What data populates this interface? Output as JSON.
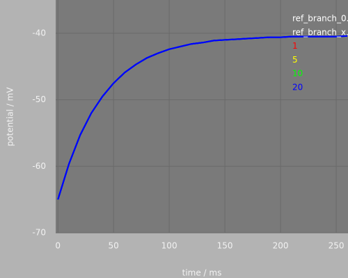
{
  "chart_data": {
    "type": "line",
    "xlabel": "time / ms",
    "ylabel": "potential / mV",
    "x": [
      0,
      10,
      20,
      30,
      40,
      50,
      60,
      70,
      80,
      90,
      100,
      110,
      120,
      130,
      140,
      150,
      160,
      170,
      180,
      190,
      200,
      210,
      220,
      230,
      240,
      250,
      260
    ],
    "series": [
      {
        "name": "ref_branch_0.",
        "color": "#ffffff",
        "values": [
          -65,
          -59.6,
          -55.3,
          -52,
          -49.5,
          -47.5,
          -45.9,
          -44.7,
          -43.7,
          -43,
          -42.4,
          -42,
          -41.6,
          -41.4,
          -41.1,
          -41,
          -40.9,
          -40.8,
          -40.7,
          -40.6,
          -40.6,
          -40.5,
          -40.5,
          -40.5,
          -40.5,
          -40.5,
          -40.4
        ]
      },
      {
        "name": "ref_branch_x.",
        "color": "#ffffff",
        "values": [
          -65,
          -59.6,
          -55.3,
          -52,
          -49.5,
          -47.5,
          -45.9,
          -44.7,
          -43.7,
          -43,
          -42.4,
          -42,
          -41.6,
          -41.4,
          -41.1,
          -41,
          -40.9,
          -40.8,
          -40.7,
          -40.6,
          -40.6,
          -40.5,
          -40.5,
          -40.5,
          -40.5,
          -40.5,
          -40.4
        ]
      },
      {
        "name": "1",
        "color": "#ff0000",
        "values": [
          -65,
          -59.6,
          -55.3,
          -52,
          -49.5,
          -47.5,
          -45.9,
          -44.7,
          -43.7,
          -43,
          -42.4,
          -42,
          -41.6,
          -41.4,
          -41.1,
          -41,
          -40.9,
          -40.8,
          -40.7,
          -40.6,
          -40.6,
          -40.5,
          -40.5,
          -40.5,
          -40.5,
          -40.5,
          -40.4
        ]
      },
      {
        "name": "5",
        "color": "#ffff00",
        "values": [
          -65,
          -59.6,
          -55.3,
          -52,
          -49.5,
          -47.5,
          -45.9,
          -44.7,
          -43.7,
          -43,
          -42.4,
          -42,
          -41.6,
          -41.4,
          -41.1,
          -41,
          -40.9,
          -40.8,
          -40.7,
          -40.6,
          -40.6,
          -40.5,
          -40.5,
          -40.5,
          -40.5,
          -40.5,
          -40.4
        ]
      },
      {
        "name": "10",
        "color": "#00ff00",
        "values": [
          -65,
          -59.6,
          -55.3,
          -52,
          -49.5,
          -47.5,
          -45.9,
          -44.7,
          -43.7,
          -43,
          -42.4,
          -42,
          -41.6,
          -41.4,
          -41.1,
          -41,
          -40.9,
          -40.8,
          -40.7,
          -40.6,
          -40.6,
          -40.5,
          -40.5,
          -40.5,
          -40.5,
          -40.5,
          -40.4
        ]
      },
      {
        "name": "20",
        "color": "#0000ff",
        "values": [
          -65,
          -59.6,
          -55.3,
          -52,
          -49.5,
          -47.5,
          -45.9,
          -44.7,
          -43.7,
          -43,
          -42.4,
          -42,
          -41.6,
          -41.4,
          -41.1,
          -41,
          -40.9,
          -40.8,
          -40.7,
          -40.6,
          -40.6,
          -40.5,
          -40.5,
          -40.5,
          -40.5,
          -40.5,
          -40.4
        ]
      }
    ],
    "xlim": [
      -2,
      260.6
    ],
    "xticks": [
      0,
      50,
      100,
      150,
      200,
      250
    ],
    "ylim": [
      -70,
      -35
    ],
    "yticks": [
      -40,
      -50,
      -60,
      -70
    ],
    "grid": true
  }
}
